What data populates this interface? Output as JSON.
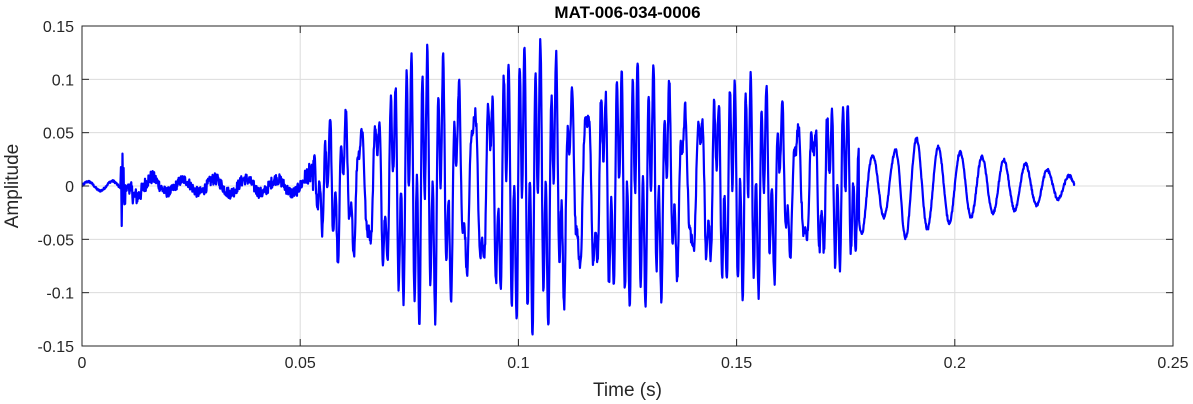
{
  "chart_data": {
    "type": "line",
    "title": "MAT-006-034-0006",
    "xlabel": "Time (s)",
    "ylabel": "Amplitude",
    "xlim": [
      0,
      0.25
    ],
    "ylim": [
      -0.15,
      0.15
    ],
    "xticks": [
      0,
      0.05,
      0.1,
      0.15,
      0.2,
      0.25
    ],
    "xtick_labels": [
      "0",
      "0.05",
      "0.1",
      "0.15",
      "0.2",
      "0.25"
    ],
    "yticks": [
      -0.15,
      -0.1,
      -0.05,
      0,
      0.05,
      0.1,
      0.15
    ],
    "ytick_labels": [
      "-0.15",
      "-0.1",
      "-0.05",
      "0",
      "0.05",
      "0.1",
      "0.15"
    ],
    "grid": true,
    "series": [
      {
        "color": "#0000ff",
        "x_start": 0,
        "x_end": 0.2275,
        "envelope": [
          [
            0.0,
            0.005
          ],
          [
            0.0088,
            0.006
          ],
          [
            0.0092,
            0.048
          ],
          [
            0.0096,
            -0.033
          ],
          [
            0.011,
            0.02
          ],
          [
            0.02,
            0.01
          ],
          [
            0.03,
            0.012
          ],
          [
            0.045,
            0.012
          ],
          [
            0.05,
            0.012
          ],
          [
            0.054,
            0.03
          ],
          [
            0.058,
            0.085
          ],
          [
            0.065,
            0.095
          ],
          [
            0.07,
            0.11
          ],
          [
            0.075,
            0.13
          ],
          [
            0.09,
            0.13
          ],
          [
            0.1,
            0.14
          ],
          [
            0.11,
            0.14
          ],
          [
            0.125,
            0.12
          ],
          [
            0.14,
            0.115
          ],
          [
            0.155,
            0.105
          ],
          [
            0.165,
            0.095
          ],
          [
            0.175,
            0.09
          ],
          [
            0.178,
            0.05
          ],
          [
            0.181,
            0.028
          ],
          [
            0.186,
            0.03
          ],
          [
            0.188,
            0.05
          ],
          [
            0.195,
            0.038
          ],
          [
            0.205,
            0.028
          ],
          [
            0.215,
            0.022
          ],
          [
            0.2275,
            0.008
          ]
        ],
        "f0_hz": 270,
        "noise_floor_until": 0.053,
        "peak_cluster_hz": 850
      }
    ]
  }
}
